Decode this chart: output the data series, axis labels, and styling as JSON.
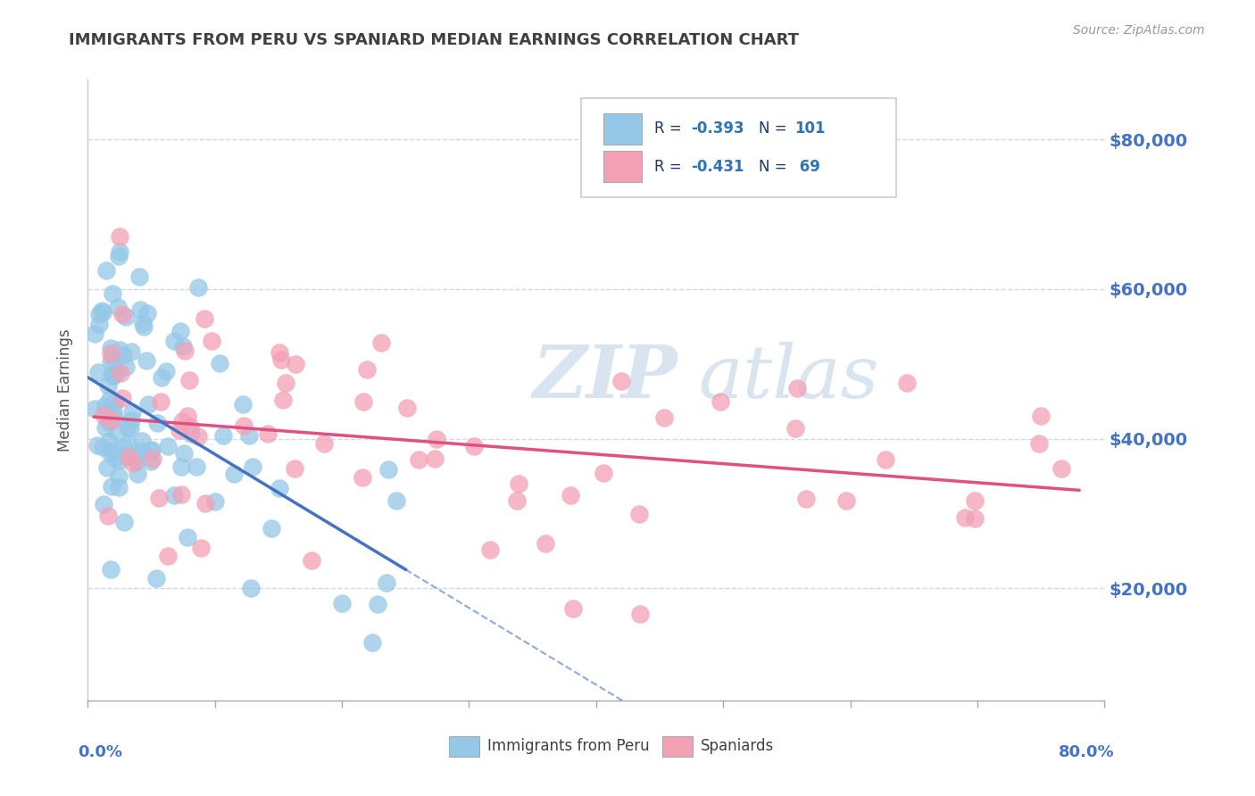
{
  "title": "IMMIGRANTS FROM PERU VS SPANIARD MEDIAN EARNINGS CORRELATION CHART",
  "source": "Source: ZipAtlas.com",
  "ylabel": "Median Earnings",
  "y_tick_values": [
    20000,
    40000,
    60000,
    80000
  ],
  "xlim": [
    0.0,
    0.8
  ],
  "ylim": [
    5000,
    88000
  ],
  "legend_peru_r": "R = -0.393",
  "legend_peru_n": "N = 101",
  "legend_spain_r": "R = -0.431",
  "legend_spain_n": "N =  69",
  "peru_color": "#95C8E8",
  "spain_color": "#F4A0B5",
  "peru_line_color": "#4472C4",
  "spain_line_color": "#E05080",
  "watermark_color": "#D8E4F0",
  "background_color": "#ffffff",
  "title_color": "#404040",
  "axis_label_color": "#4472C4",
  "grid_color": "#D0D8E8",
  "legend_text_color": "#1F3864",
  "legend_r_color": "#2E74B5",
  "source_color": "#999999"
}
